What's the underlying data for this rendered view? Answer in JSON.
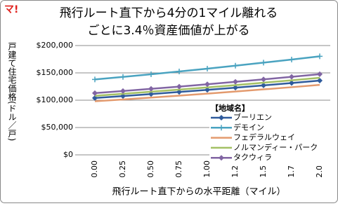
{
  "logo": "マ!",
  "chart_data": {
    "type": "line",
    "title": [
      "飛行ルート直下から4分の1マイル離れる",
      "ごとに3.4％資産価値が上がる"
    ],
    "y_label": "戸建て住宅価格(ドル／戸)",
    "x_label": "飛行ルート直下からの水平距離（マイル）",
    "legend_title": "【地域名】",
    "categories": [
      "0.00",
      "0.25",
      "0.50",
      "0.75",
      "1.00",
      "1.25",
      "1.50",
      "1.75",
      "2.00"
    ],
    "ylim": [
      0,
      200000
    ],
    "yticks": [
      {
        "value": 0,
        "label": "$0"
      },
      {
        "value": 50000,
        "label": "$50,000"
      },
      {
        "value": 100000,
        "label": "$100,000"
      },
      {
        "value": 150000,
        "label": "$150,000"
      },
      {
        "value": 200000,
        "label": "$200,000"
      }
    ],
    "grid": true,
    "series": [
      {
        "name": "ブーリエン",
        "color": "#2f5b9c",
        "marker": "diamond",
        "values": [
          104000,
          107500,
          111200,
          115000,
          118900,
          122900,
          127100,
          131400,
          135900
        ]
      },
      {
        "name": "デモイン",
        "color": "#4aa3c0",
        "marker": "plus",
        "values": [
          138000,
          142700,
          147500,
          152500,
          157700,
          163100,
          168700,
          174400,
          180300
        ]
      },
      {
        "name": "フェデラルウェイ",
        "color": "#e39a6e",
        "marker": "none",
        "values": [
          98000,
          101300,
          104800,
          108400,
          112000,
          115800,
          119800,
          123800,
          128000
        ]
      },
      {
        "name": "ノルマンディー・パーク",
        "color": "#a3c064",
        "marker": "none",
        "values": [
          108000,
          111700,
          115500,
          119400,
          123400,
          127600,
          132000,
          136400,
          141000
        ]
      },
      {
        "name": "タクウィラ",
        "color": "#8165a3",
        "marker": "diamond",
        "values": [
          113000,
          116800,
          120800,
          124900,
          129200,
          133600,
          138100,
          142800,
          147600
        ]
      }
    ]
  }
}
